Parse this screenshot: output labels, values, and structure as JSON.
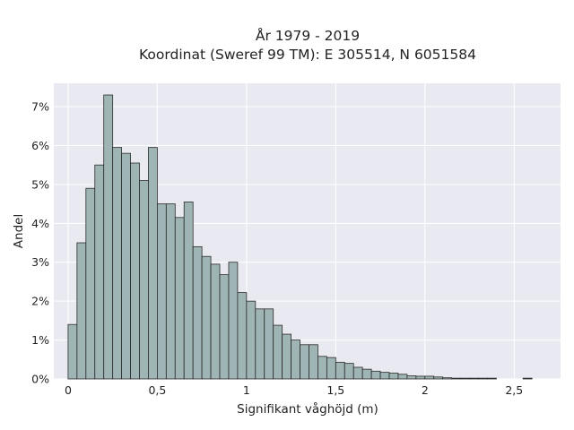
{
  "chart_data": {
    "type": "bar",
    "title_line1": "År 1979 - 2019",
    "title_line2": "Koordinat (Sweref 99 TM): E 305514, N 6051584",
    "xlabel": "Signifikant våghöjd (m)",
    "ylabel": "Andel",
    "bin_width": 0.05,
    "bin_start": 0,
    "xlim": [
      -0.08,
      2.76
    ],
    "ylim": [
      0,
      7.6
    ],
    "xticks": [
      0,
      0.5,
      1,
      1.5,
      2,
      2.5
    ],
    "xtick_labels": [
      "0",
      "0,5",
      "1",
      "1,5",
      "2",
      "2,5"
    ],
    "yticks": [
      0,
      1,
      2,
      3,
      4,
      5,
      6,
      7
    ],
    "ytick_labels": [
      "0%",
      "1%",
      "2%",
      "3%",
      "4%",
      "5%",
      "6%",
      "7%"
    ],
    "values": [
      1.4,
      3.5,
      4.9,
      5.5,
      7.3,
      5.95,
      5.8,
      5.55,
      5.1,
      5.95,
      4.5,
      4.5,
      4.15,
      4.55,
      3.4,
      3.15,
      2.95,
      2.68,
      3.0,
      2.22,
      2.0,
      1.8,
      1.8,
      1.38,
      1.15,
      1.0,
      0.88,
      0.88,
      0.58,
      0.55,
      0.43,
      0.4,
      0.3,
      0.25,
      0.2,
      0.17,
      0.15,
      0.12,
      0.08,
      0.07,
      0.07,
      0.05,
      0.03,
      0.02,
      0.02,
      0.02,
      0.02,
      0.02,
      0.0,
      0.0,
      0.0,
      0.02
    ],
    "grid": true,
    "colors": {
      "background": "#e9e9f1",
      "grid": "#ffffff",
      "bar_fill": "#9fb5b5",
      "bar_edge": "#2a2a2a"
    }
  }
}
